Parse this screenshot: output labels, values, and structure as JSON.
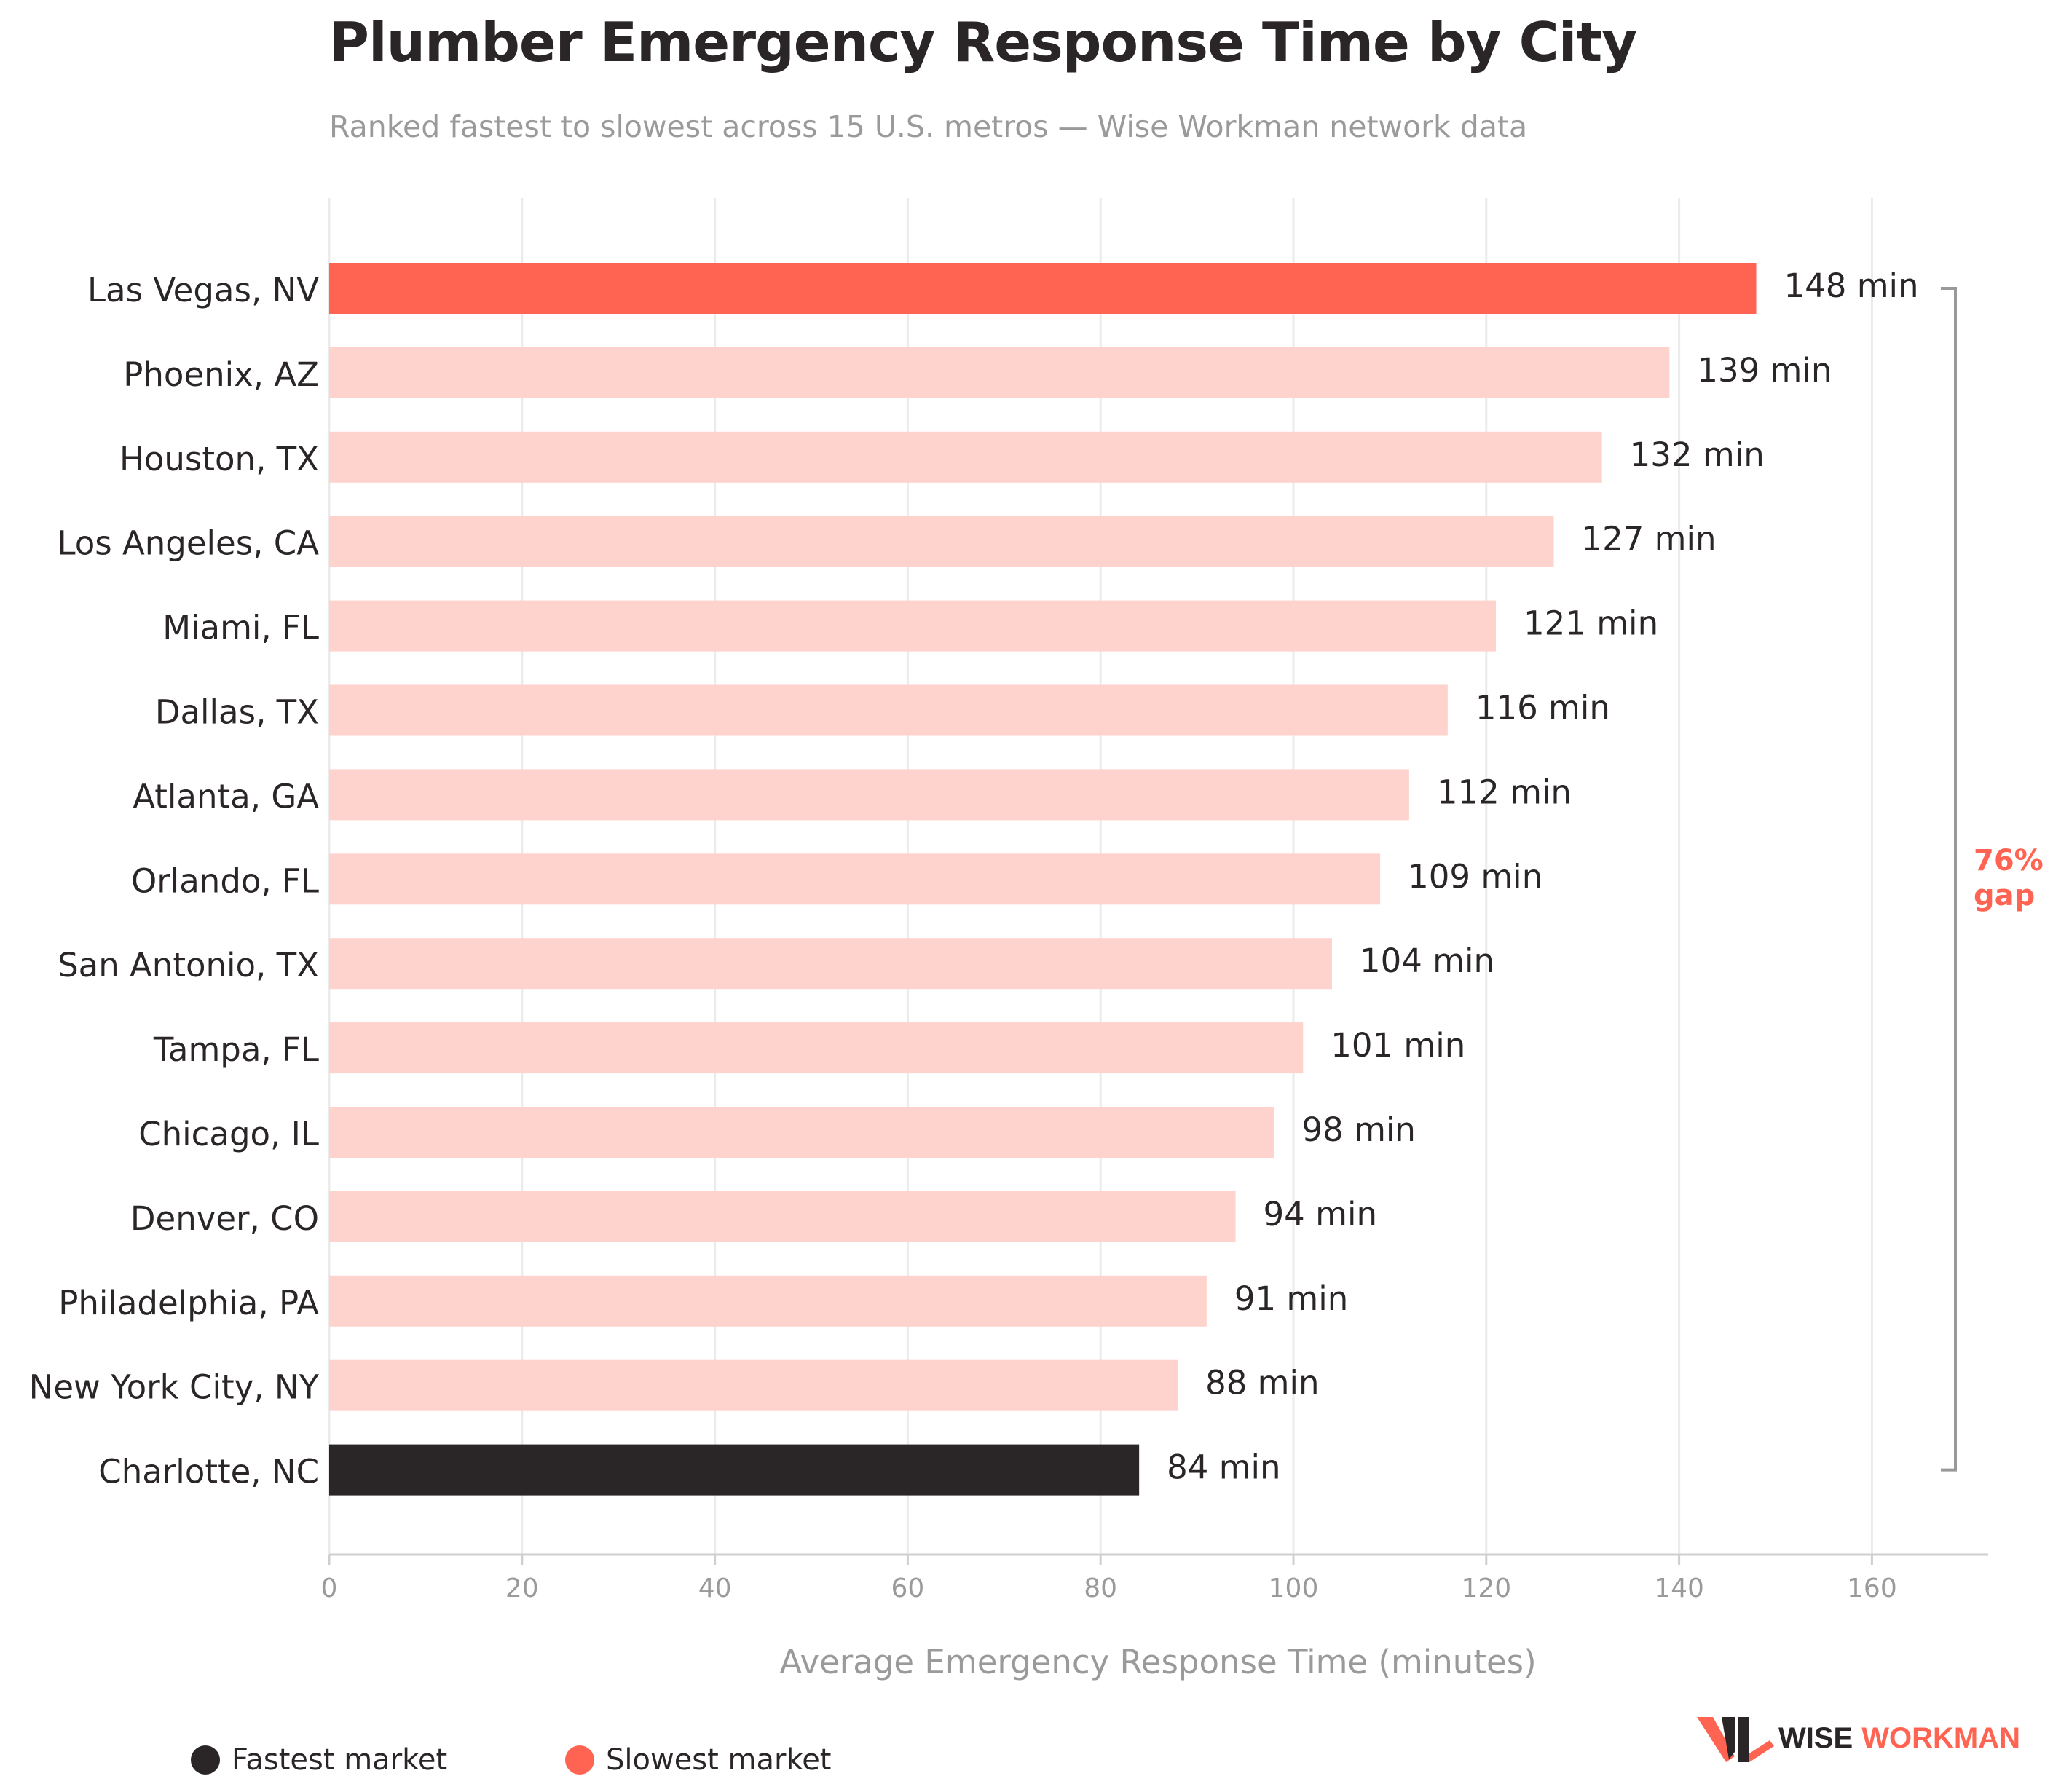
{
  "chart_data": {
    "type": "bar",
    "orientation": "horizontal",
    "title": "Plumber Emergency Response Time by City",
    "subtitle": "Ranked fastest to slowest across 15 U.S. metros — Wise Workman network data",
    "xlabel": "Average Emergency Response Time (minutes)",
    "ylabel": "",
    "xlim": [
      0,
      170
    ],
    "x_ticks": [
      0,
      20,
      40,
      60,
      80,
      100,
      120,
      140,
      160
    ],
    "grid": "vertical",
    "value_suffix": " min",
    "categories": [
      "Las Vegas, NV",
      "Phoenix, AZ",
      "Houston, TX",
      "Los Angeles, CA",
      "Miami, FL",
      "Dallas, TX",
      "Atlanta, GA",
      "Orlando, FL",
      "San Antonio, TX",
      "Tampa, FL",
      "Chicago, IL",
      "Denver, CO",
      "Philadelphia, PA",
      "New York City, NY",
      "Charlotte, NC"
    ],
    "values": [
      148,
      139,
      132,
      127,
      121,
      116,
      112,
      109,
      104,
      101,
      98,
      94,
      91,
      88,
      84
    ],
    "value_labels": [
      "148 min",
      "139 min",
      "132 min",
      "127 min",
      "121 min",
      "116 min",
      "112 min",
      "109 min",
      "104 min",
      "101 min",
      "98 min",
      "94 min",
      "91 min",
      "88 min",
      "84 min"
    ],
    "colors": {
      "default": "#ffd3cd",
      "slowest": "#ff6452",
      "fastest": "#2a2627",
      "gap_text": "#ff6452",
      "bracket": "#999999",
      "grid": "#ebebeb",
      "axis_text": "#9a9a9a",
      "label_text": "#2a2627"
    },
    "highlight": {
      "slowest_index": 0,
      "fastest_index": 14
    },
    "annotation": {
      "text_line1": "76%",
      "text_line2": "gap",
      "span": [
        "Las Vegas, NV",
        "Charlotte, NC"
      ]
    },
    "legend": {
      "placement": "bottom-left",
      "items": [
        {
          "label": "Fastest market",
          "color": "#2a2627"
        },
        {
          "label": "Slowest market",
          "color": "#ff6452"
        }
      ]
    }
  },
  "branding": {
    "logo_word1": "WISE",
    "logo_word2": "WORKMAN"
  }
}
